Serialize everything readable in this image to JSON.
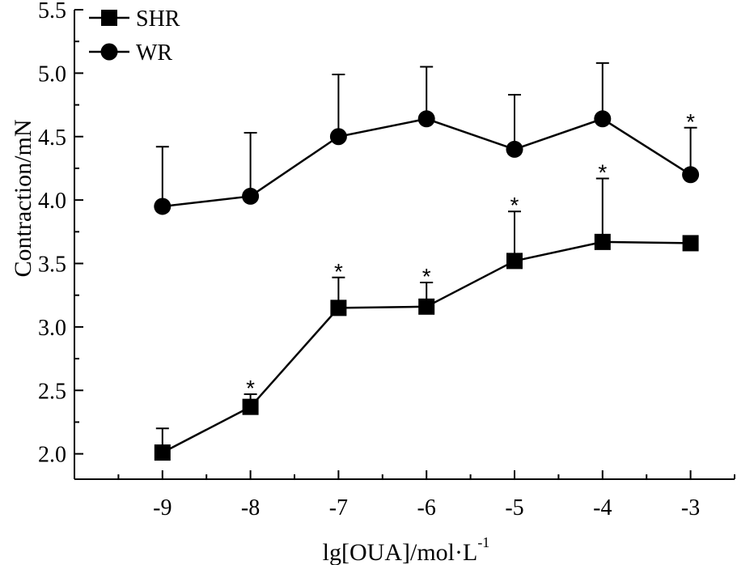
{
  "chart_data": {
    "type": "line",
    "x": [
      -9,
      -8,
      -7,
      -6,
      -5,
      -4,
      -3
    ],
    "xlabel": "lg[OUA]/mol·L",
    "xlabel_superscript": "-1",
    "ylabel": "Contraction/mN",
    "xlim": [
      -10,
      -2.5
    ],
    "ylim": [
      1.8,
      5.5
    ],
    "x_ticks": [
      "-9",
      "-8",
      "-7",
      "-6",
      "-5",
      "-4",
      "-3"
    ],
    "y_ticks": [
      "2.0",
      "2.5",
      "3.0",
      "3.5",
      "4.0",
      "4.5",
      "5.0",
      "5.5"
    ],
    "legend_position": "top-left",
    "grid": false,
    "significance_mark": "*",
    "series": [
      {
        "name": "SHR",
        "marker": "square",
        "values": [
          2.01,
          2.37,
          3.15,
          3.16,
          3.52,
          3.67,
          3.66
        ],
        "error": [
          0.19,
          0.1,
          0.24,
          0.19,
          0.39,
          0.5,
          0.0
        ],
        "significant": [
          false,
          true,
          true,
          true,
          true,
          true,
          false
        ]
      },
      {
        "name": "WR",
        "marker": "circle",
        "values": [
          3.95,
          4.03,
          4.5,
          4.64,
          4.4,
          4.64,
          4.2
        ],
        "error": [
          0.47,
          0.5,
          0.49,
          0.41,
          0.43,
          0.44,
          0.37
        ],
        "significant": [
          false,
          false,
          false,
          false,
          false,
          false,
          true
        ]
      }
    ]
  }
}
